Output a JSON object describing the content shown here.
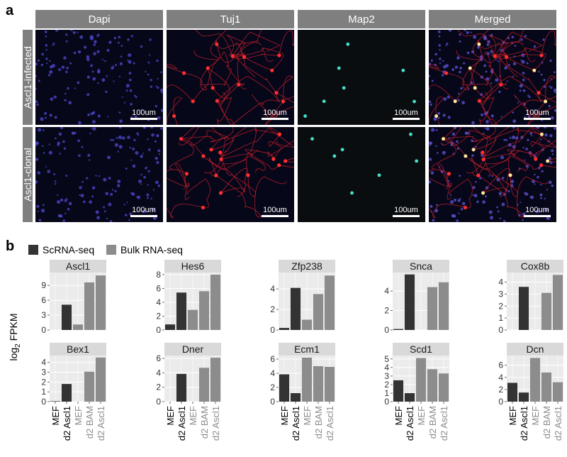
{
  "panel_a": {
    "letter": "a",
    "columns": [
      "Dapi",
      "Tuj1",
      "Map2",
      "Merged"
    ],
    "rows": [
      "Ascl1-infected",
      "Ascl1-clonal"
    ],
    "scale_label": "100um"
  },
  "panel_b": {
    "letter": "b",
    "legend": [
      {
        "label": "ScRNA-seq",
        "color": "#333333"
      },
      {
        "label": "Bulk RNA-seq",
        "color": "#8c8c8c"
      }
    ]
  },
  "chart_data": {
    "type": "bar",
    "categories": [
      "MEF",
      "d2 Ascl1",
      "MEF",
      "d2 BAM",
      "d2 Ascl1"
    ],
    "category_source": [
      "ScRNA-seq",
      "ScRNA-seq",
      "Bulk RNA-seq",
      "Bulk RNA-seq",
      "Bulk RNA-seq"
    ],
    "ylabel": "log2 FPKM",
    "colors": {
      "ScRNA-seq": "#333333",
      "Bulk RNA-seq": "#8c8c8c",
      "panel_bg": "#ebebeb",
      "strip": "#d9d9d9"
    },
    "panels": [
      {
        "title": "Ascl1",
        "values": [
          0,
          5.1,
          1.1,
          9.6,
          11.0
        ],
        "ylim": [
          0,
          11.6
        ],
        "yticks": [
          0,
          3,
          6,
          9
        ]
      },
      {
        "title": "Hes6",
        "values": [
          0.8,
          5.4,
          2.9,
          5.6,
          8.0
        ],
        "ylim": [
          0,
          8.3
        ],
        "yticks": [
          0,
          2,
          4,
          6,
          8
        ]
      },
      {
        "title": "Zfp238",
        "values": [
          0.2,
          4.1,
          1.0,
          3.5,
          5.3
        ],
        "ylim": [
          0,
          5.6
        ],
        "yticks": [
          0,
          2,
          4
        ]
      },
      {
        "title": "Snca",
        "values": [
          0.1,
          5.7,
          0,
          4.4,
          4.9
        ],
        "ylim": [
          0,
          5.9
        ],
        "yticks": [
          0,
          2,
          4
        ]
      },
      {
        "title": "Cox8b",
        "values": [
          0,
          3.6,
          0,
          3.1,
          4.6
        ],
        "ylim": [
          0,
          4.8
        ],
        "yticks": [
          0,
          1,
          2,
          3,
          4
        ]
      },
      {
        "title": "Bex1",
        "values": [
          0.05,
          1.8,
          0,
          3.05,
          4.5
        ],
        "ylim": [
          0,
          4.7
        ],
        "yticks": [
          0,
          1,
          2,
          3,
          4
        ]
      },
      {
        "title": "Dner",
        "values": [
          0,
          3.85,
          0,
          4.7,
          6.1
        ],
        "ylim": [
          0,
          6.4
        ],
        "yticks": [
          0,
          2,
          4,
          6
        ]
      },
      {
        "title": "Ecm1",
        "values": [
          3.85,
          1.2,
          6.2,
          5.0,
          4.9
        ],
        "ylim": [
          0,
          6.5
        ],
        "yticks": [
          0,
          2,
          4,
          6
        ]
      },
      {
        "title": "Scd1",
        "values": [
          2.5,
          1.0,
          5.1,
          3.8,
          3.3
        ],
        "ylim": [
          0,
          5.4
        ],
        "yticks": [
          0,
          1,
          2,
          3,
          4,
          5
        ]
      },
      {
        "title": "Dcn",
        "values": [
          3.1,
          1.5,
          7.2,
          4.8,
          3.2
        ],
        "ylim": [
          0,
          7.6
        ],
        "yticks": [
          0,
          2,
          4,
          6
        ]
      }
    ]
  }
}
